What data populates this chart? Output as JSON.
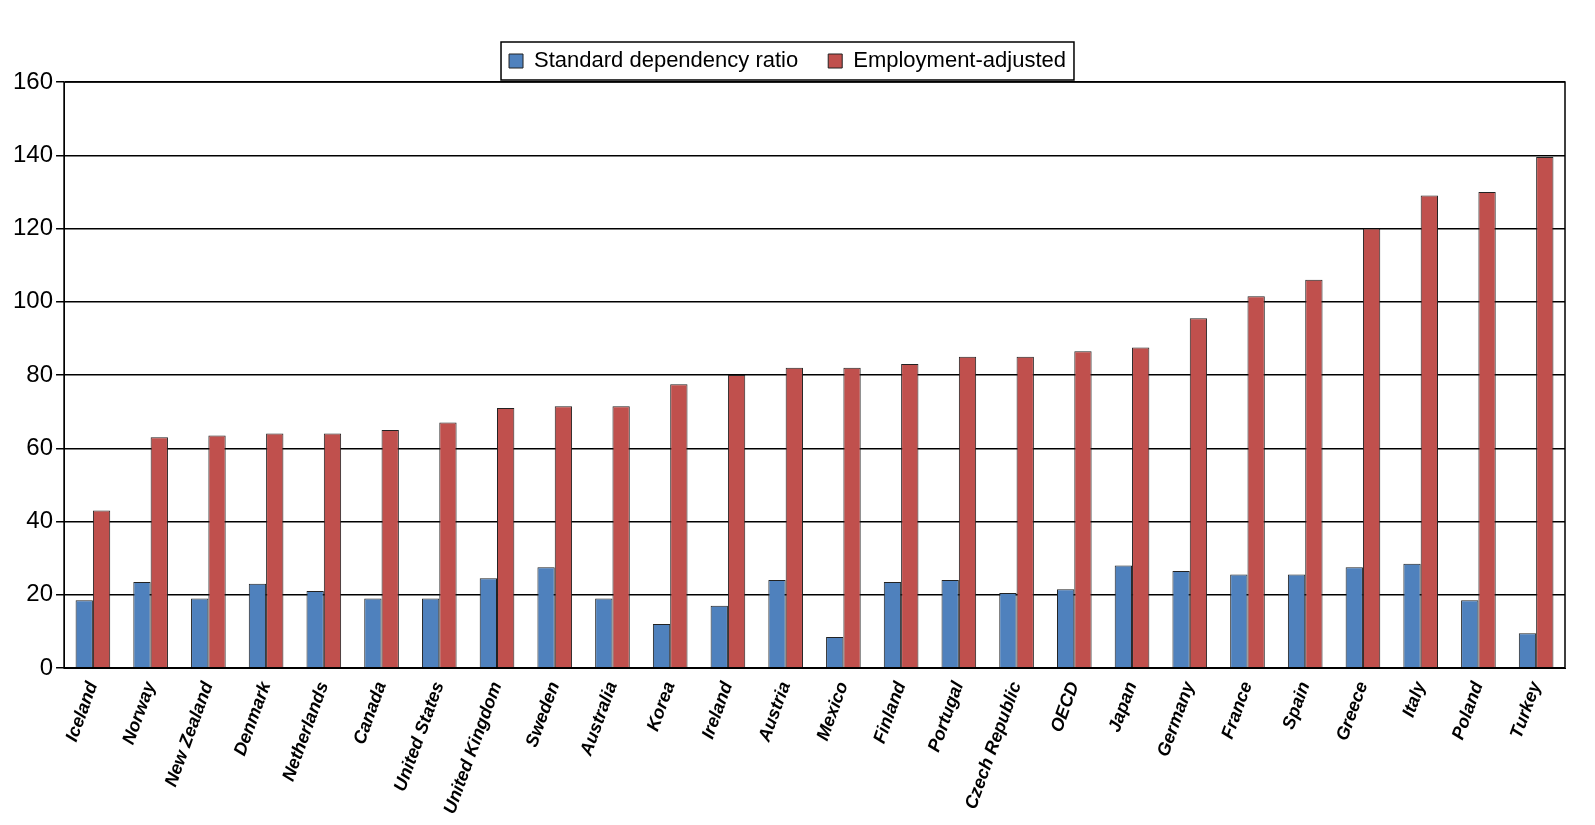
{
  "chart_data": {
    "type": "bar",
    "categories": [
      "Iceland",
      "Norway",
      "New Zealand",
      "Denmark",
      "Netherlands",
      "Canada",
      "United States",
      "United Kingdom",
      "Sweden",
      "Australia",
      "Korea",
      "Ireland",
      "Austria",
      "Mexico",
      "Finland",
      "Portugal",
      "Czech Republic",
      "OECD",
      "Japan",
      "Germany",
      "France",
      "Spain",
      "Greece",
      "Italy",
      "Poland",
      "Turkey"
    ],
    "series": [
      {
        "name": "Standard dependency ratio",
        "color": "#4f81bd",
        "values": [
          18.5,
          23.5,
          19,
          23,
          21,
          19,
          19,
          24.5,
          27.5,
          19,
          12,
          17,
          24,
          8.5,
          23.5,
          24,
          20.5,
          21.5,
          28,
          26.5,
          25.5,
          25.5,
          27.5,
          28.5,
          18.5,
          9.5
        ]
      },
      {
        "name": "Employment-adjusted",
        "color": "#c0504d",
        "values": [
          43,
          63,
          63.5,
          64,
          64,
          65,
          67,
          71,
          71.5,
          71.5,
          77.5,
          80,
          82,
          82,
          83,
          85,
          85,
          86.5,
          87.5,
          95.5,
          101.5,
          106,
          120,
          129,
          130,
          139.5
        ]
      }
    ],
    "ylim": [
      0,
      160
    ],
    "yticks": [
      0,
      20,
      40,
      60,
      80,
      100,
      120,
      140,
      160
    ],
    "grid": "y",
    "legend": "top"
  }
}
